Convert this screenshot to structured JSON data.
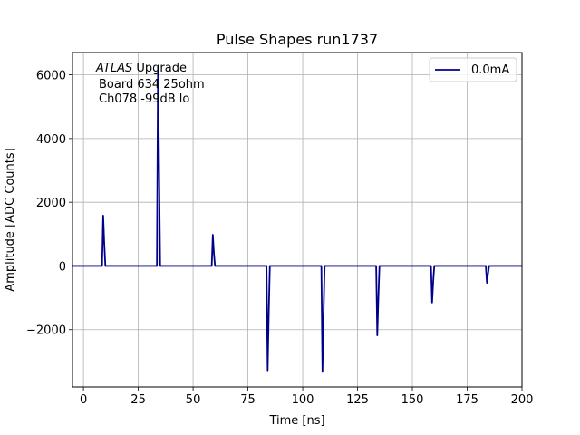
{
  "chart_data": {
    "type": "line",
    "title": "Pulse Shapes run1737",
    "xlabel": "Time [ns]",
    "ylabel": "Amplitude [ADC Counts]",
    "xlim": [
      -5,
      200
    ],
    "ylim": [
      -3800,
      6700
    ],
    "x_ticks": [
      0,
      25,
      50,
      75,
      100,
      125,
      150,
      175,
      200
    ],
    "y_ticks": [
      -2000,
      0,
      2000,
      4000,
      6000
    ],
    "y_tick_labels": [
      "−2000",
      "0",
      "2000",
      "4000",
      "6000"
    ],
    "grid": true,
    "legend_position": "top-right",
    "annotation": {
      "line1_italic": "ATLAS",
      "line1_rest": " Upgrade",
      "line2": "Board 634 25ohm",
      "line3": "Ch078 -99dB lo"
    },
    "series": [
      {
        "name": "0.0mA",
        "color": "#00008b",
        "x": [
          -5,
          8.5,
          9,
          9.5,
          10,
          33.5,
          34,
          34.5,
          35,
          58.5,
          59,
          59.5,
          60,
          83.5,
          84,
          84.5,
          85,
          108.5,
          109,
          109.5,
          110,
          133.5,
          134,
          134.5,
          135,
          158.5,
          159,
          159.5,
          160,
          183.5,
          184,
          184.5,
          185,
          200
        ],
        "y": [
          0,
          0,
          1580,
          700,
          0,
          0,
          6250,
          3000,
          0,
          0,
          980,
          400,
          0,
          0,
          -3280,
          -1500,
          0,
          0,
          -3330,
          -1500,
          0,
          0,
          -2180,
          -1000,
          0,
          0,
          -1150,
          -500,
          0,
          0,
          -530,
          -250,
          0,
          0
        ]
      }
    ]
  }
}
